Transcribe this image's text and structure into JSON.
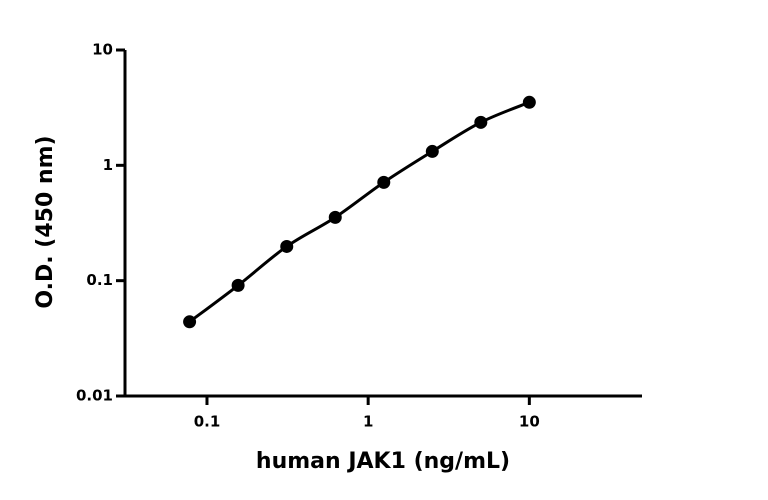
{
  "chart_data": {
    "type": "scatter-line",
    "x_label": "human JAK1 (ng/mL)",
    "y_label": "O.D. (450 nm)",
    "x": [
      0.078,
      0.156,
      0.3125,
      0.625,
      1.25,
      2.5,
      5,
      10
    ],
    "series": [
      {
        "color": "#000000",
        "values": [
          0.044,
          0.091,
          0.198,
          0.354,
          0.712,
          1.32,
          2.36,
          3.52
        ]
      }
    ],
    "x_log": true,
    "y_log": true,
    "xlim": [
      0.031,
      50
    ],
    "ylim": [
      0.01,
      10
    ],
    "xticks": [
      0.1,
      1,
      10
    ],
    "yticks": [
      0.01,
      0.1,
      1,
      10
    ]
  }
}
